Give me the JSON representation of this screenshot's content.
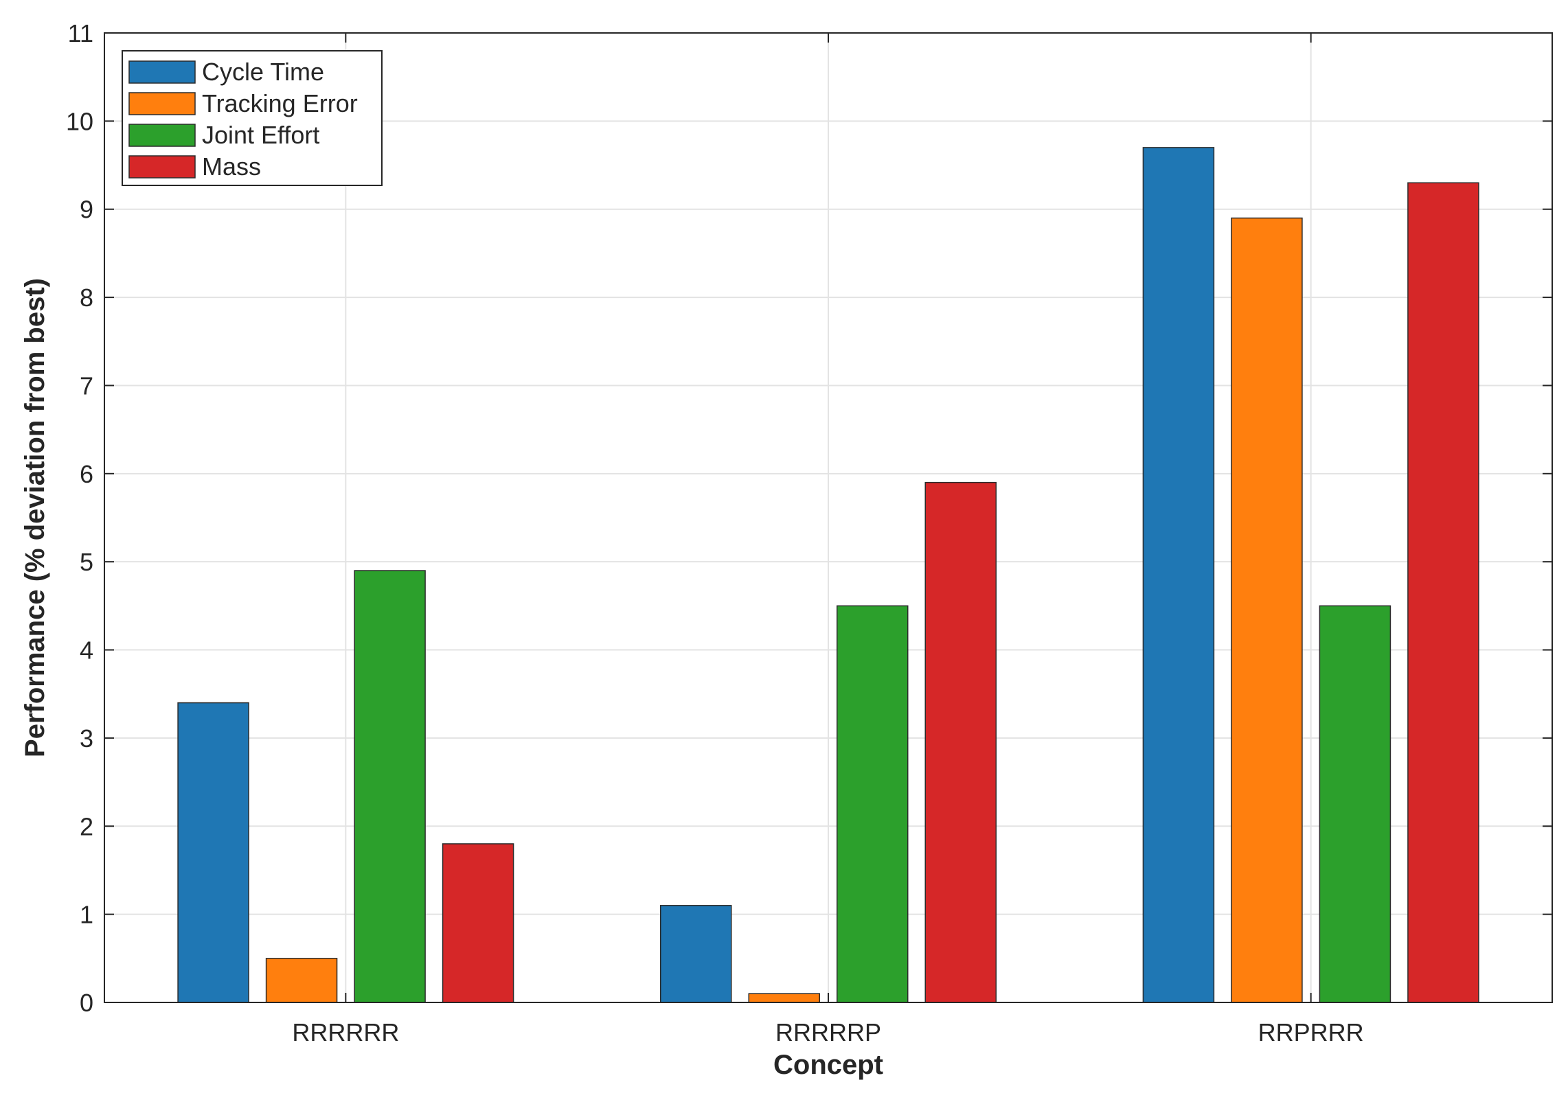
{
  "chart_data": {
    "type": "bar",
    "title": "",
    "xlabel": "Concept",
    "ylabel": "Performance (% deviation from best)",
    "categories": [
      "RRRRRR",
      "RRRRRP",
      "RRPRRR"
    ],
    "ylim": [
      0,
      11
    ],
    "yticks": [
      0,
      1,
      2,
      3,
      4,
      5,
      6,
      7,
      8,
      9,
      10,
      11
    ],
    "grid": true,
    "legend_position": "top-left",
    "series": [
      {
        "name": "Cycle Time",
        "color": "#1f77b4",
        "values": [
          3.4,
          1.1,
          9.7
        ]
      },
      {
        "name": "Tracking Error",
        "color": "#ff7f0e",
        "values": [
          0.5,
          0.1,
          8.9
        ]
      },
      {
        "name": "Joint Effort",
        "color": "#2ca02c",
        "values": [
          4.9,
          4.5,
          4.5
        ]
      },
      {
        "name": "Mass",
        "color": "#d62728",
        "values": [
          1.8,
          5.9,
          9.3
        ]
      }
    ]
  }
}
